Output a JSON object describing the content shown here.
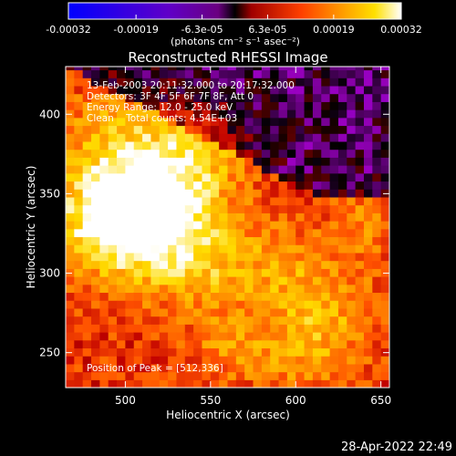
{
  "chart_data": {
    "type": "heatmap",
    "title": "Reconstructed RHESSI Image",
    "xlabel": "Heliocentric X (arcsec)",
    "ylabel": "Heliocentric Y (arcsec)",
    "xlim": [
      465,
      655
    ],
    "ylim": [
      228,
      430
    ],
    "xticks": [
      500,
      550,
      600,
      650
    ],
    "yticks": [
      250,
      300,
      350,
      400
    ],
    "colorbar": {
      "min": -0.00032,
      "max": 0.00032,
      "tick_values": [
        -0.00032,
        -0.00019,
        -6.3e-05,
        6.3e-05,
        0.00019,
        0.00032
      ],
      "tick_labels": [
        "-0.00032",
        "-0.00019",
        "-6.3e-05",
        "6.3e-05",
        "0.00019",
        "0.00032"
      ],
      "unit_label": "(photons cm⁻² s⁻¹ asec⁻²)"
    },
    "annotations": [
      "13-Feb-2003 20:11:32.000 to 20:17:32.000",
      "Detectors: 3F 4F 5F 6F 7F 8F, Att 0",
      "Energy Range: 12.0 - 25.0 keV",
      "Clean    Total counts: 4.54E+03",
      "Position of Peak = [512,336]"
    ],
    "peak_position": [
      512,
      336
    ],
    "grid": false,
    "colormap": [
      "#0000ff",
      "#5a00c8",
      "#9a00c0",
      "#000000",
      "#c00000",
      "#ff5000",
      "#ff9a00",
      "#ffdc00",
      "#ffffff"
    ]
  },
  "footer": {
    "timestamp": "28-Apr-2022 22:49"
  }
}
